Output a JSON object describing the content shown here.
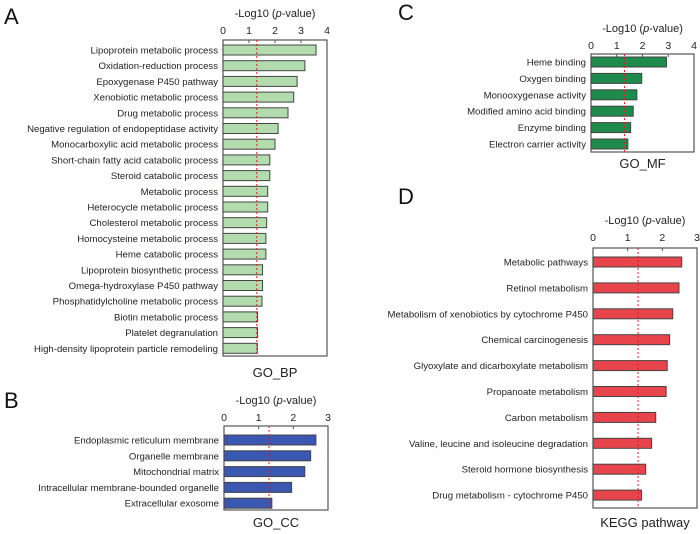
{
  "figure": {
    "threshold": 1.3,
    "threshold_color": "#e02020",
    "axis_title_prefix": "-Log10 (",
    "axis_title_italic": "p",
    "axis_title_suffix": "-value)"
  },
  "chart_data": [
    {
      "panel": "A",
      "type": "bar",
      "orientation": "horizontal",
      "group_label": "GO_BP",
      "xlabel": "-Log10 (p-value)",
      "xlim": [
        0,
        4
      ],
      "xticks": [
        "0",
        "1",
        "2",
        "3",
        "4"
      ],
      "bar_color": "#b3dcae",
      "threshold_line": 1.3,
      "categories": [
        "Lipoprotein metabolic process",
        "Oxidation-reduction process",
        "Epoxygenase P450 pathway",
        "Xenobiotic metabolic process",
        "Drug metabolic process",
        "Negative regulation of endopeptidase activity",
        "Monocarboxylic acid metabolic process",
        "Short-chain fatty acid catabolic process",
        "Steroid catabolic process",
        "Metabolic process",
        "Heterocycle metabolic process",
        "Cholesterol metabolic process",
        "Homocysteine metabolic process",
        "Heme catabolic process",
        "Lipoprotein biosynthetic process",
        "Omega-hydroxylase P450 pathway",
        "Phosphatidylcholine metabolic process",
        "Biotin metabolic process",
        "Platelet degranulation",
        "High-density lipoprotein particle remodeling"
      ],
      "values": [
        3.58,
        3.15,
        2.85,
        2.72,
        2.5,
        2.12,
        2.0,
        1.8,
        1.8,
        1.72,
        1.72,
        1.68,
        1.65,
        1.65,
        1.52,
        1.52,
        1.5,
        1.33,
        1.33,
        1.32
      ]
    },
    {
      "panel": "B",
      "type": "bar",
      "orientation": "horizontal",
      "group_label": "GO_CC",
      "xlabel": "-Log10 (p-value)",
      "xlim": [
        0,
        3
      ],
      "xticks": [
        "0",
        "1",
        "2",
        "3"
      ],
      "bar_color": "#3a57b2",
      "threshold_line": 1.3,
      "categories": [
        "Endoplasmic reticulum membrane",
        "Organelle membrane",
        "Mitochondrial matrix",
        "Intracellular membrane-bounded organelle",
        "Extracellular exosome"
      ],
      "values": [
        2.65,
        2.5,
        2.33,
        1.95,
        1.38
      ]
    },
    {
      "panel": "C",
      "type": "bar",
      "orientation": "horizontal",
      "group_label": "GO_MF",
      "xlabel": "-Log10 (p-value)",
      "xlim": [
        0,
        4
      ],
      "xticks": [
        "0",
        "1",
        "2",
        "3",
        "4"
      ],
      "bar_color": "#1e8a4c",
      "threshold_line": 1.3,
      "categories": [
        "Heme binding",
        "Oxygen binding",
        "Monooxygenase activity",
        "Modified amino acid binding",
        "Enzyme binding",
        "Electron carrier activity"
      ],
      "values": [
        2.93,
        1.97,
        1.78,
        1.64,
        1.54,
        1.43
      ]
    },
    {
      "panel": "D",
      "type": "bar",
      "orientation": "horizontal",
      "group_label": "KEGG pathway",
      "xlabel": "-Log10 (p-value)",
      "xlim": [
        0,
        3
      ],
      "xticks": [
        "0",
        "1",
        "2",
        "3"
      ],
      "bar_color": "#e8444c",
      "threshold_line": 1.3,
      "categories": [
        "Metabolic pathways",
        "Retinol metabolism",
        "Metabolism of xenobiotics by cytochrome P450",
        "Chemical carcinogenesis",
        "Glyoxylate and dicarboxylate metabolism",
        "Propanoate metabolism",
        "Carbon metabolism",
        "Valine, leucine and isoleucine degradation",
        "Steroid hormone biosynthesis",
        "Drug metabolism - cytochrome P450"
      ],
      "values": [
        2.56,
        2.48,
        2.3,
        2.21,
        2.14,
        2.11,
        1.81,
        1.69,
        1.52,
        1.4
      ]
    }
  ]
}
